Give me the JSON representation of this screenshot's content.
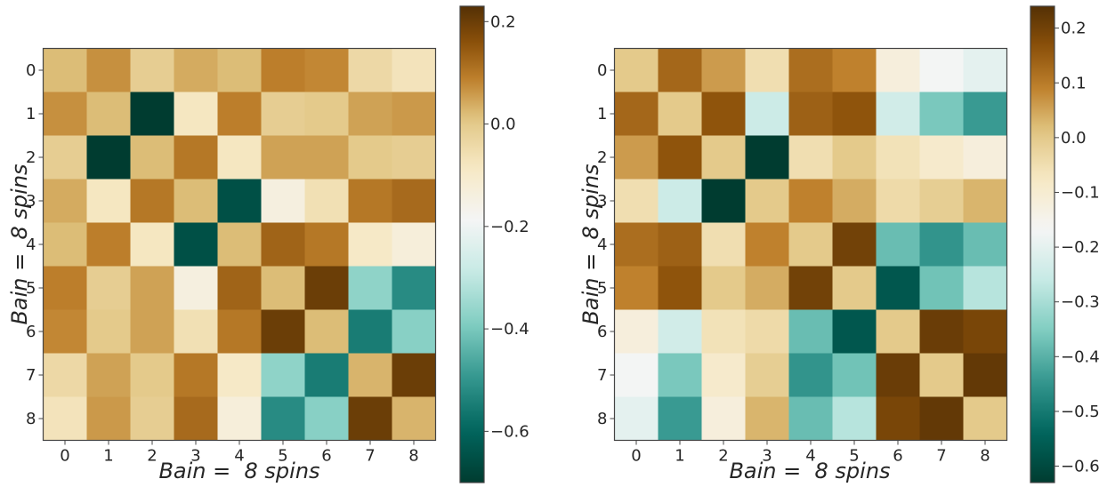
{
  "chart_data": [
    {
      "type": "heatmap",
      "colormap": "BrBG",
      "x_categories": [
        "0",
        "1",
        "2",
        "3",
        "4",
        "5",
        "6",
        "7",
        "8"
      ],
      "y_categories": [
        "0",
        "1",
        "2",
        "3",
        "4",
        "5",
        "6",
        "7",
        "8"
      ],
      "xlabel": "Bain =  8 spins",
      "ylabel": "Bain =  8 spins",
      "vmin": -0.7,
      "vmax": 0.23,
      "colorbar_ticks": [
        0.2,
        0.0,
        -0.2,
        -0.4,
        -0.6
      ],
      "colorbar_tick_labels": [
        "0.2",
        "0.0",
        "−0.2",
        "−0.4",
        "−0.6"
      ],
      "grid": false,
      "values": [
        [
          0.02,
          0.07,
          -0.01,
          0.04,
          0.02,
          0.09,
          0.08,
          -0.04,
          -0.07
        ],
        [
          0.07,
          0.02,
          -0.7,
          -0.08,
          0.09,
          -0.01,
          0.0,
          0.05,
          0.06
        ],
        [
          -0.01,
          -0.7,
          0.02,
          0.1,
          -0.08,
          0.05,
          0.05,
          0.0,
          -0.01
        ],
        [
          0.04,
          -0.08,
          0.1,
          0.02,
          -0.65,
          -0.14,
          -0.06,
          0.1,
          0.12
        ],
        [
          0.02,
          0.09,
          -0.08,
          -0.65,
          0.02,
          0.13,
          0.1,
          -0.09,
          -0.13
        ],
        [
          0.09,
          -0.01,
          0.05,
          -0.14,
          0.13,
          0.02,
          0.2,
          -0.37,
          -0.52
        ],
        [
          0.08,
          0.0,
          0.05,
          -0.06,
          0.1,
          0.2,
          0.02,
          -0.55,
          -0.38
        ],
        [
          -0.04,
          0.05,
          0.0,
          0.1,
          -0.09,
          -0.37,
          -0.55,
          0.03,
          0.2
        ],
        [
          -0.07,
          0.06,
          -0.01,
          0.12,
          -0.13,
          -0.52,
          -0.38,
          0.2,
          0.03
        ]
      ]
    },
    {
      "type": "heatmap",
      "colormap": "BrBG",
      "x_categories": [
        "0",
        "1",
        "2",
        "3",
        "4",
        "5",
        "6",
        "7",
        "8"
      ],
      "y_categories": [
        "0",
        "1",
        "2",
        "3",
        "4",
        "5",
        "6",
        "7",
        "8"
      ],
      "xlabel": "Bain =  8 spins",
      "ylabel": "Bain =  8 spins",
      "vmin": -0.63,
      "vmax": 0.24,
      "colorbar_ticks": [
        0.2,
        0.1,
        0.0,
        -0.1,
        -0.2,
        -0.3,
        -0.4,
        -0.5,
        -0.6
      ],
      "colorbar_tick_labels": [
        "0.2",
        "0.1",
        "0.0",
        "−0.1",
        "−0.2",
        "−0.3",
        "−0.4",
        "−0.5",
        "−0.6"
      ],
      "grid": false,
      "values": [
        [
          0.0,
          0.13,
          0.06,
          -0.05,
          0.12,
          0.09,
          -0.12,
          -0.17,
          -0.2
        ],
        [
          0.13,
          0.0,
          0.16,
          -0.25,
          0.14,
          0.16,
          -0.24,
          -0.36,
          -0.44
        ],
        [
          0.06,
          0.16,
          0.0,
          -0.63,
          -0.05,
          0.0,
          -0.06,
          -0.09,
          -0.12
        ],
        [
          -0.05,
          -0.25,
          -0.63,
          0.0,
          0.09,
          0.04,
          -0.04,
          -0.01,
          0.03
        ],
        [
          0.12,
          0.14,
          -0.05,
          0.09,
          0.0,
          0.2,
          -0.38,
          -0.45,
          -0.38
        ],
        [
          0.09,
          0.16,
          0.0,
          0.04,
          0.2,
          0.0,
          -0.57,
          -0.37,
          -0.28
        ],
        [
          -0.12,
          -0.24,
          -0.06,
          -0.04,
          -0.38,
          -0.57,
          0.0,
          0.21,
          0.19
        ],
        [
          -0.17,
          -0.36,
          -0.09,
          -0.01,
          -0.45,
          -0.37,
          0.21,
          0.0,
          0.22
        ],
        [
          -0.2,
          -0.44,
          -0.12,
          0.03,
          -0.38,
          -0.28,
          0.19,
          0.22,
          0.0
        ]
      ]
    }
  ]
}
